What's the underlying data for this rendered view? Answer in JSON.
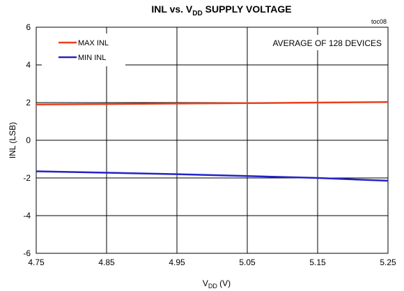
{
  "chart_data": {
    "type": "line",
    "title": {
      "prefix": "INL vs. V",
      "subscript": "DD",
      "suffix": " SUPPLY VOLTAGE"
    },
    "figure_id": "toc08",
    "xlabel": {
      "prefix": "V",
      "subscript": "DD",
      "suffix": " (V)"
    },
    "ylabel": "INL (LSB)",
    "xlim": [
      4.75,
      5.25
    ],
    "ylim": [
      -6,
      6
    ],
    "x_ticks": [
      4.75,
      4.85,
      4.95,
      5.05,
      5.15,
      5.25
    ],
    "x_tick_labels": [
      "4.75",
      "4.85",
      "4.95",
      "5.05",
      "5.15",
      "5.25"
    ],
    "y_ticks": [
      -6,
      -4,
      -2,
      0,
      2,
      4,
      6
    ],
    "y_tick_labels": [
      "-6",
      "-4",
      "-2",
      "0",
      "2",
      "4",
      "6"
    ],
    "grid": true,
    "legend_position": "top-left",
    "annotation": "AVERAGE OF 128 DEVICES",
    "series": [
      {
        "name": "MAX INL",
        "color": "#e8401c",
        "x": [
          4.75,
          4.85,
          4.95,
          5.05,
          5.15,
          5.25
        ],
        "y": [
          1.9,
          1.92,
          1.95,
          1.97,
          2.0,
          2.03
        ]
      },
      {
        "name": "MIN INL",
        "color": "#2323c8",
        "x": [
          4.75,
          4.85,
          4.95,
          5.05,
          5.15,
          5.25
        ],
        "y": [
          -1.65,
          -1.72,
          -1.8,
          -1.9,
          -2.0,
          -2.15
        ]
      }
    ]
  }
}
